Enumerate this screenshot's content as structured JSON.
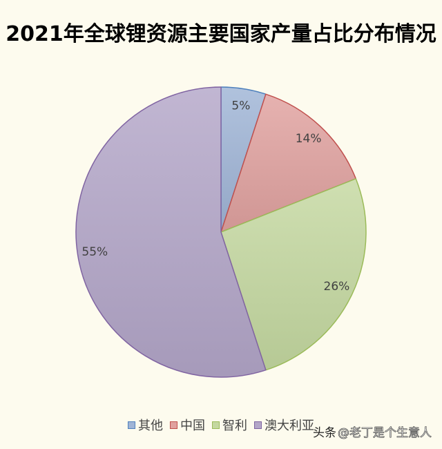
{
  "chart_data": {
    "type": "pie",
    "title": "2021年全球锂资源主要国家产量占比分布情况",
    "categories": [
      "其他",
      "中国",
      "智利",
      "澳大利亚"
    ],
    "values": [
      5,
      14,
      26,
      55
    ],
    "labels": [
      "5%",
      "14%",
      "26%",
      "55%"
    ],
    "direction": "clockwise-from-top",
    "legend_position": "bottom",
    "grid": false,
    "colors": [
      "#9fb4d6",
      "#e0a19f",
      "#c4d8a0",
      "#b3a6c8"
    ],
    "border_colors": [
      "#4f81bd",
      "#c0504d",
      "#9bbb59",
      "#8064a2"
    ]
  },
  "watermark": {
    "source": "头条",
    "handle": "@老丁是个生意人"
  }
}
